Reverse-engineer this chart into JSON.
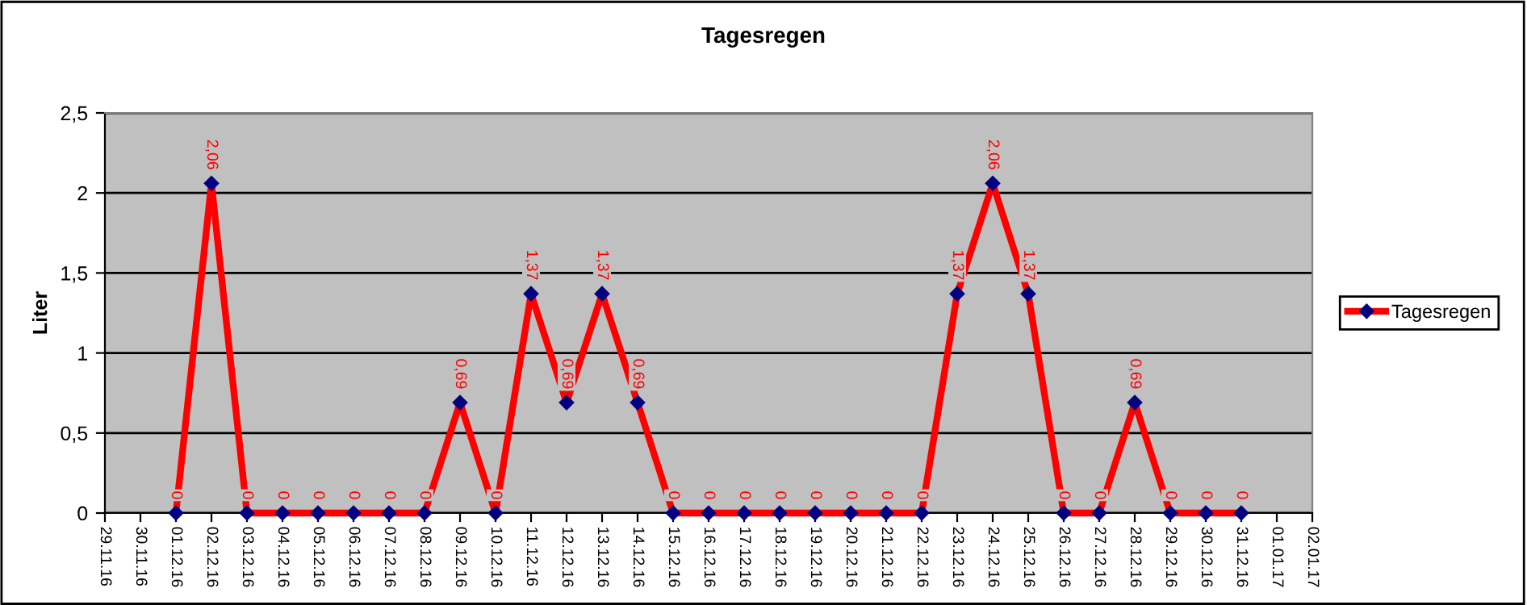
{
  "chart_data": {
    "type": "line",
    "title": "Tagesregen",
    "ylabel": "Liter",
    "categories": [
      "29.11.16",
      "30.11.16",
      "01.12.16",
      "02.12.16",
      "03.12.16",
      "04.12.16",
      "05.12.16",
      "06.12.16",
      "07.12.16",
      "08.12.16",
      "09.12.16",
      "10.12.16",
      "11.12.16",
      "12.12.16",
      "13.12.16",
      "14.12.16",
      "15.12.16",
      "16.12.16",
      "17.12.16",
      "18.12.16",
      "19.12.16",
      "20.12.16",
      "21.12.16",
      "22.12.16",
      "23.12.16",
      "24.12.16",
      "25.12.16",
      "26.12.16",
      "27.12.16",
      "28.12.16",
      "29.12.16",
      "30.12.16",
      "31.12.16",
      "01.01.17",
      "02.01.17"
    ],
    "series": [
      {
        "name": "Tagesregen",
        "color": "#ff0000",
        "values": [
          null,
          null,
          0,
          2.06,
          0,
          0,
          0,
          0,
          0,
          0,
          0.69,
          0,
          1.37,
          0.69,
          1.37,
          0.69,
          0,
          0,
          0,
          0,
          0,
          0,
          0,
          0,
          1.37,
          2.06,
          1.37,
          0,
          0,
          0.69,
          0,
          0,
          0,
          null,
          null
        ],
        "value_labels": [
          null,
          null,
          "0",
          "2,06",
          "0",
          "0",
          "0",
          "0",
          "0",
          "0",
          "0,69",
          "0",
          "1,37",
          "0,69",
          "1,37",
          "0,69",
          "0",
          "0",
          "0",
          "0",
          "0",
          "0",
          "0",
          "0",
          "1,37",
          "2,06",
          "1,37",
          "0",
          "0",
          "0,69",
          "0",
          "0",
          "0",
          null,
          null
        ]
      }
    ],
    "ylim": [
      0,
      2.5
    ],
    "yticks": [
      0,
      {
        "value": 0.5,
        "label": "0,5"
      },
      1,
      {
        "value": 1.5,
        "label": "1,5"
      },
      2,
      {
        "value": 2.5,
        "label": "2,5"
      }
    ],
    "grid": "y",
    "legend": "right",
    "marker": "diamond",
    "line_style": "solid"
  }
}
